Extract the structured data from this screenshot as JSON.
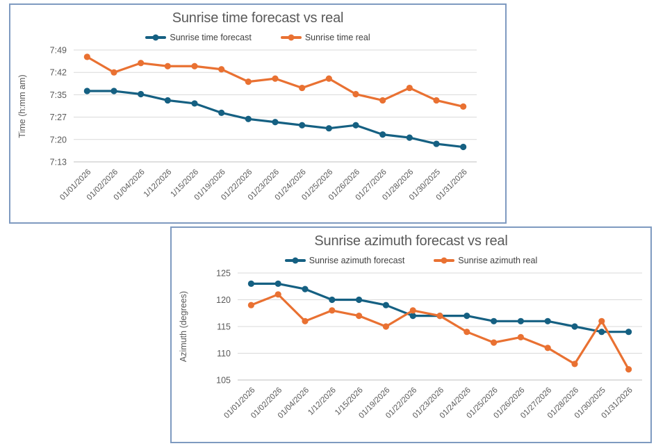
{
  "colors": {
    "series_forecast": "#156082",
    "series_real": "#E97132",
    "gridline": "#D9D9D9",
    "axis_line": "#BFBFBF",
    "text_muted": "#595959",
    "legend_text": "#404040",
    "chart_border": "#7E9AC0",
    "background": "#FFFFFF"
  },
  "chart_data": [
    {
      "type": "line",
      "title": "Sunrise time forecast vs real",
      "xlabel": "",
      "ylabel": "Time (h:mm am)",
      "legend_position": "top",
      "grid": true,
      "categories": [
        "01/01/2026",
        "01/02/2026",
        "01/04/2026",
        "1/12/2026",
        "1/15/2026",
        "01/19/2026",
        "01/22/2026",
        "01/23/2026",
        "01/24/2026",
        "01/25/2026",
        "01/26/2026",
        "01/27/2026",
        "01/28/2026",
        "01/30/2025",
        "01/31/2026"
      ],
      "series": [
        {
          "name": "Sunrise time forecast",
          "color": "#156082",
          "values": [
            "7:36",
            "7:36",
            "7:35",
            "7:33",
            "7:32",
            "7:29",
            "7:27",
            "7:26",
            "7:25",
            "7:24",
            "7:25",
            "7:22",
            "7:21",
            "7:19",
            "7:18"
          ]
        },
        {
          "name": "Sunrise time real",
          "color": "#E97132",
          "values": [
            "7:47",
            "7:42",
            "7:45",
            "7:44",
            "7:44",
            "7:43",
            "7:39",
            "7:40",
            "7:37",
            "7:40",
            "7:35",
            "7:33",
            "7:37",
            "7:33",
            "7:31"
          ]
        }
      ],
      "y_axis": {
        "unit": "minutes_after_midnight",
        "min": 433.2,
        "max": 469.2,
        "ticks": [
          {
            "v": 469.2,
            "label": "7:49"
          },
          {
            "v": 462.0,
            "label": "7:42"
          },
          {
            "v": 454.8,
            "label": "7:35"
          },
          {
            "v": 447.6,
            "label": "7:27"
          },
          {
            "v": 440.4,
            "label": "7:20"
          },
          {
            "v": 433.2,
            "label": "7:13"
          }
        ]
      }
    },
    {
      "type": "line",
      "title": "Sunrise azimuth forecast vs real",
      "xlabel": "",
      "ylabel": "Azimuth (degrees)",
      "legend_position": "top",
      "grid": true,
      "categories": [
        "01/01/2026",
        "01/02/2026",
        "01/04/2026",
        "1/12/2026",
        "1/15/2026",
        "01/19/2026",
        "01/22/2026",
        "01/23/2026",
        "01/24/2026",
        "01/25/2026",
        "01/26/2026",
        "01/27/2026",
        "01/28/2026",
        "01/30/2025",
        "01/31/2026"
      ],
      "series": [
        {
          "name": "Sunrise azimuth forecast",
          "color": "#156082",
          "values": [
            123,
            123,
            122,
            120,
            120,
            119,
            117,
            117,
            117,
            116,
            116,
            116,
            115,
            114,
            114
          ]
        },
        {
          "name": "Sunrise azimuth real",
          "color": "#E97132",
          "values": [
            119,
            121,
            116,
            118,
            117,
            115,
            118,
            117,
            114,
            112,
            113,
            111,
            108,
            116,
            107
          ]
        }
      ],
      "y_axis": {
        "unit": "degrees",
        "min": 105,
        "max": 125,
        "ticks": [
          {
            "v": 125,
            "label": "125"
          },
          {
            "v": 120,
            "label": "120"
          },
          {
            "v": 115,
            "label": "115"
          },
          {
            "v": 110,
            "label": "110"
          },
          {
            "v": 105,
            "label": "105"
          }
        ]
      }
    }
  ]
}
